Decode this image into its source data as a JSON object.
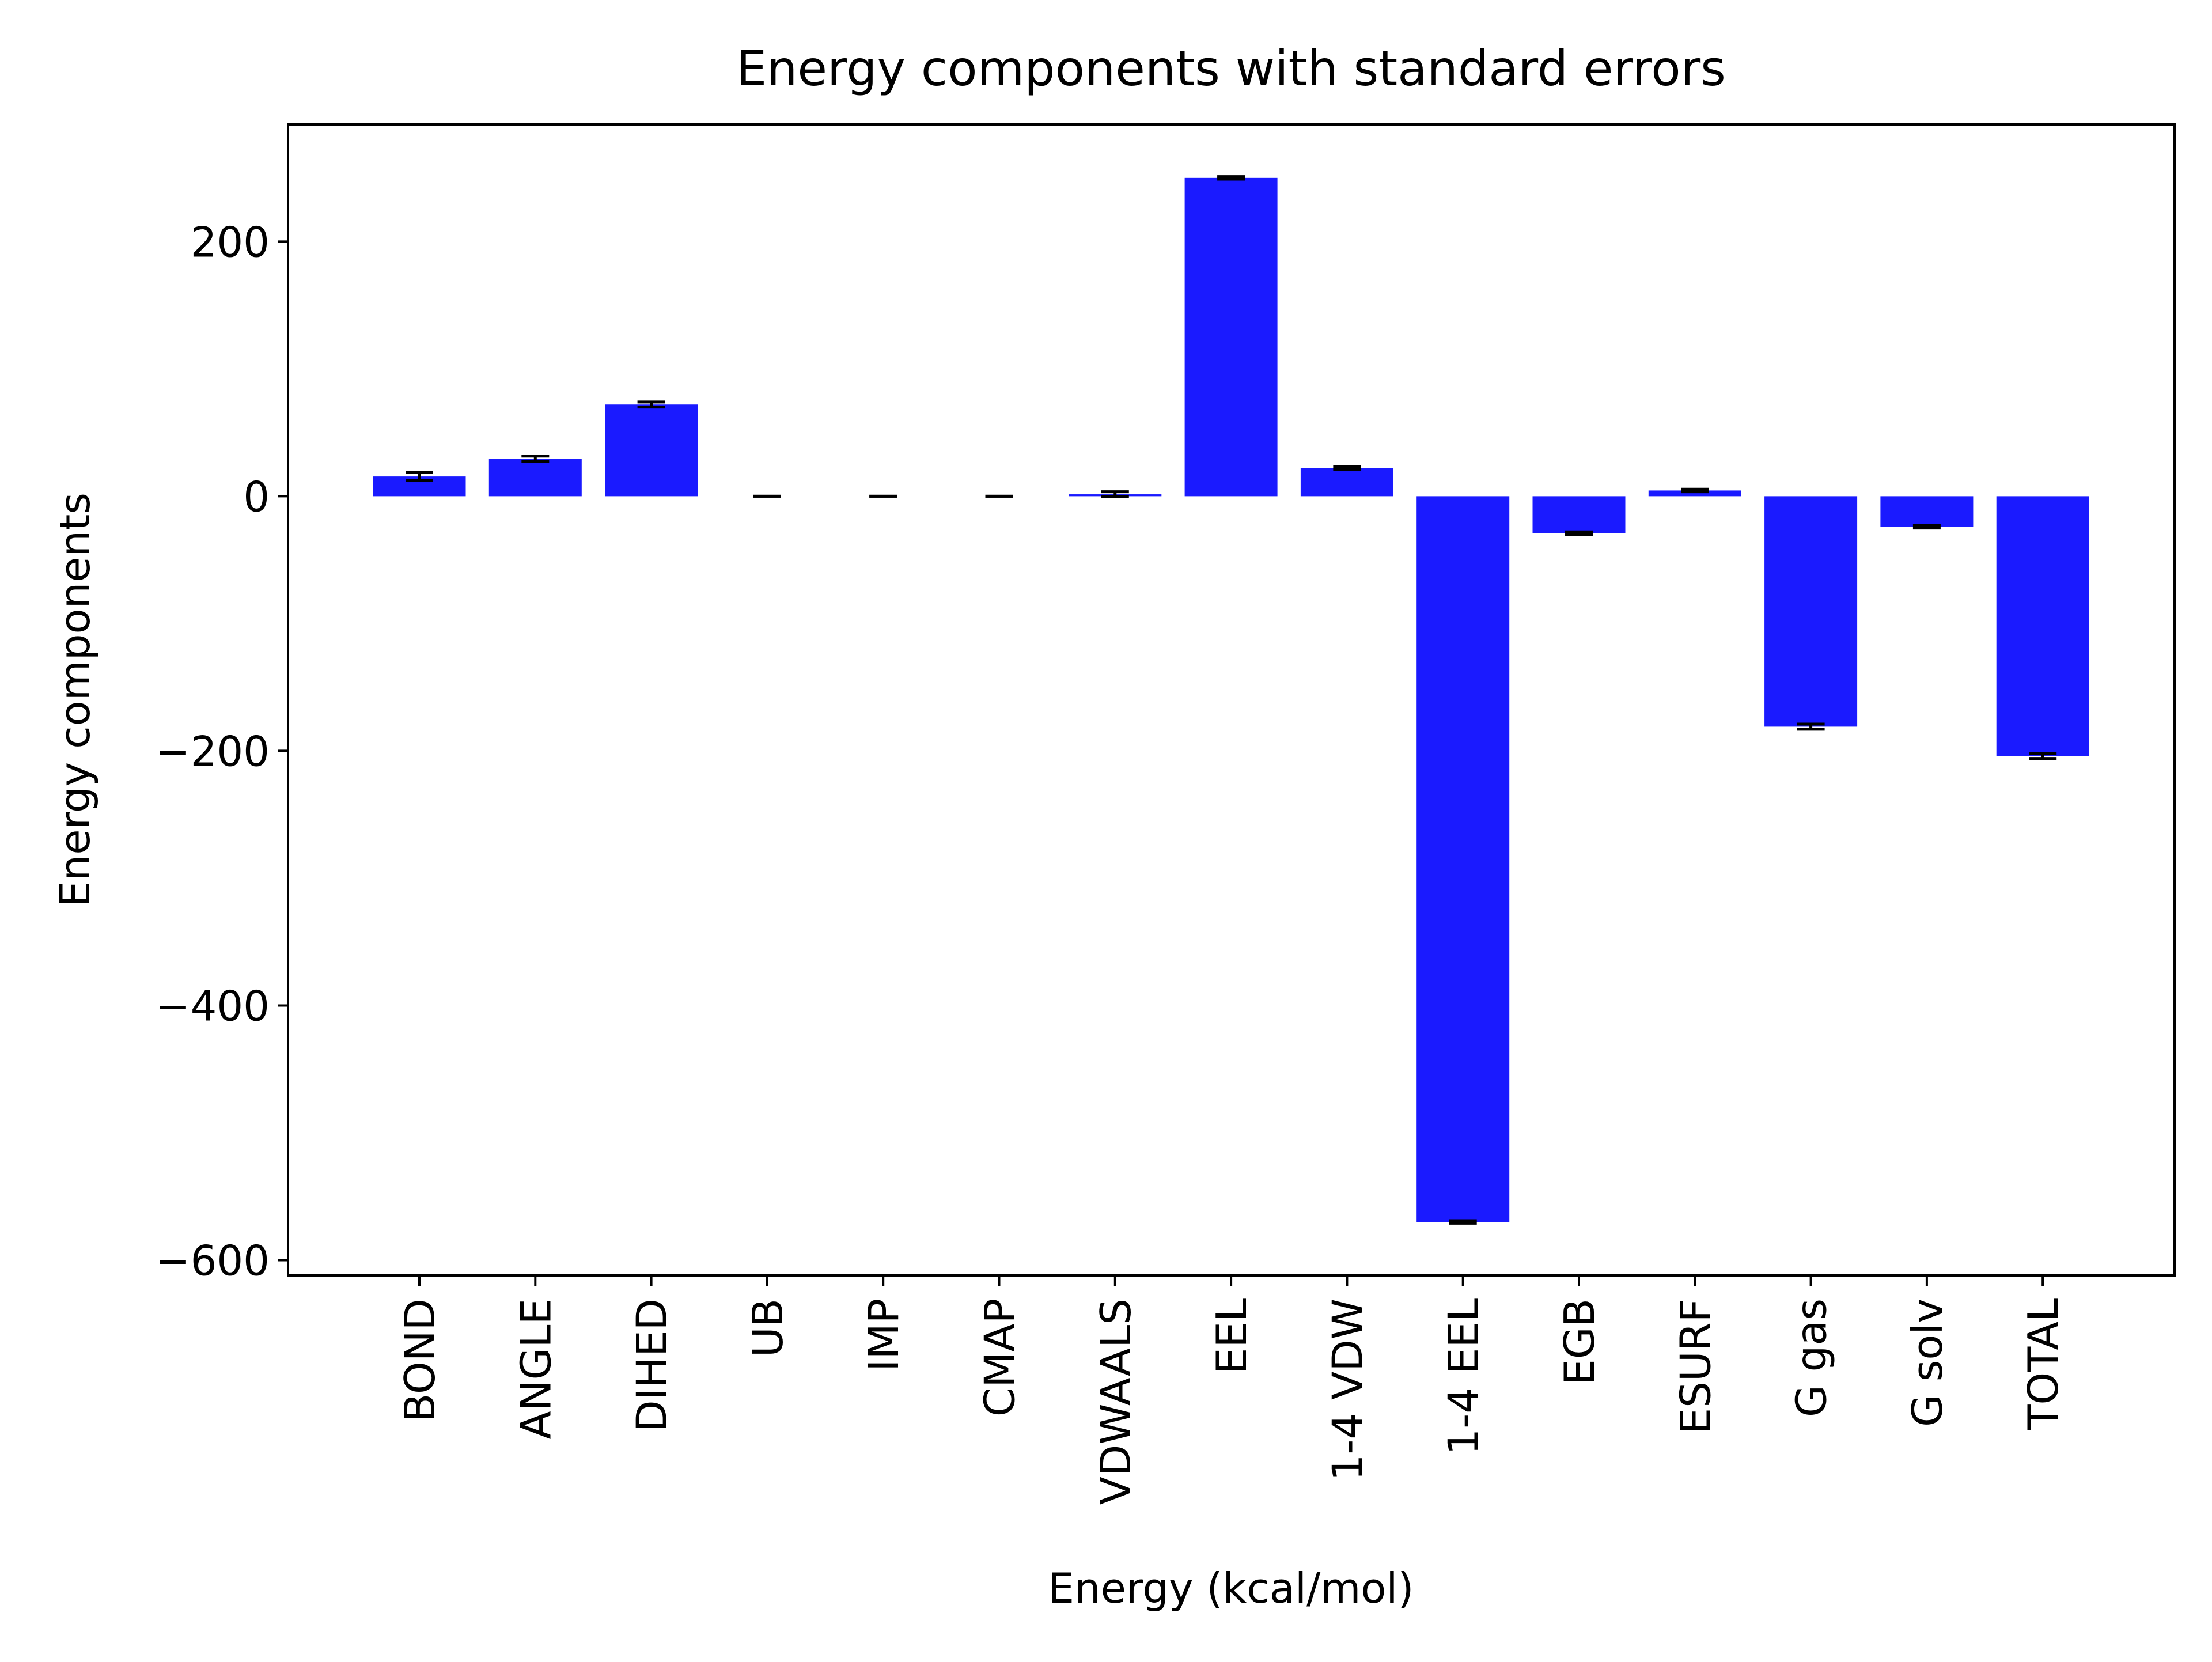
{
  "chart_data": {
    "type": "bar",
    "title": "Energy components with standard errors",
    "xlabel": "Energy (kcal/mol)",
    "ylabel": "Energy components",
    "categories": [
      "BOND",
      "ANGLE",
      "DIHED",
      "UB",
      "IMP",
      "CMAP",
      "VDWAALS",
      "EEL",
      "1-4 VDW",
      "1-4 EEL",
      "EGB",
      "ESURF",
      "G gas",
      "G solv",
      "TOTAL"
    ],
    "values": [
      15.5,
      29.5,
      72.0,
      0.0,
      0.0,
      0.0,
      1.5,
      250.0,
      22.0,
      -570.0,
      -29.0,
      4.5,
      -181.0,
      -24.0,
      -204.0
    ],
    "errors": [
      3.0,
      2.0,
      2.0,
      0.0,
      0.0,
      0.0,
      2.0,
      1.0,
      1.0,
      1.0,
      1.0,
      1.0,
      2.0,
      1.0,
      2.0
    ],
    "yticks": [
      200,
      0,
      -200,
      -400,
      -600
    ],
    "ytick_labels": [
      "200",
      "0",
      "−200",
      "−400",
      "−600"
    ],
    "ylim": [
      -612,
      292
    ],
    "bar_color": "#1a1aff",
    "error_color": "#000000",
    "grid": false,
    "legend": "none"
  }
}
